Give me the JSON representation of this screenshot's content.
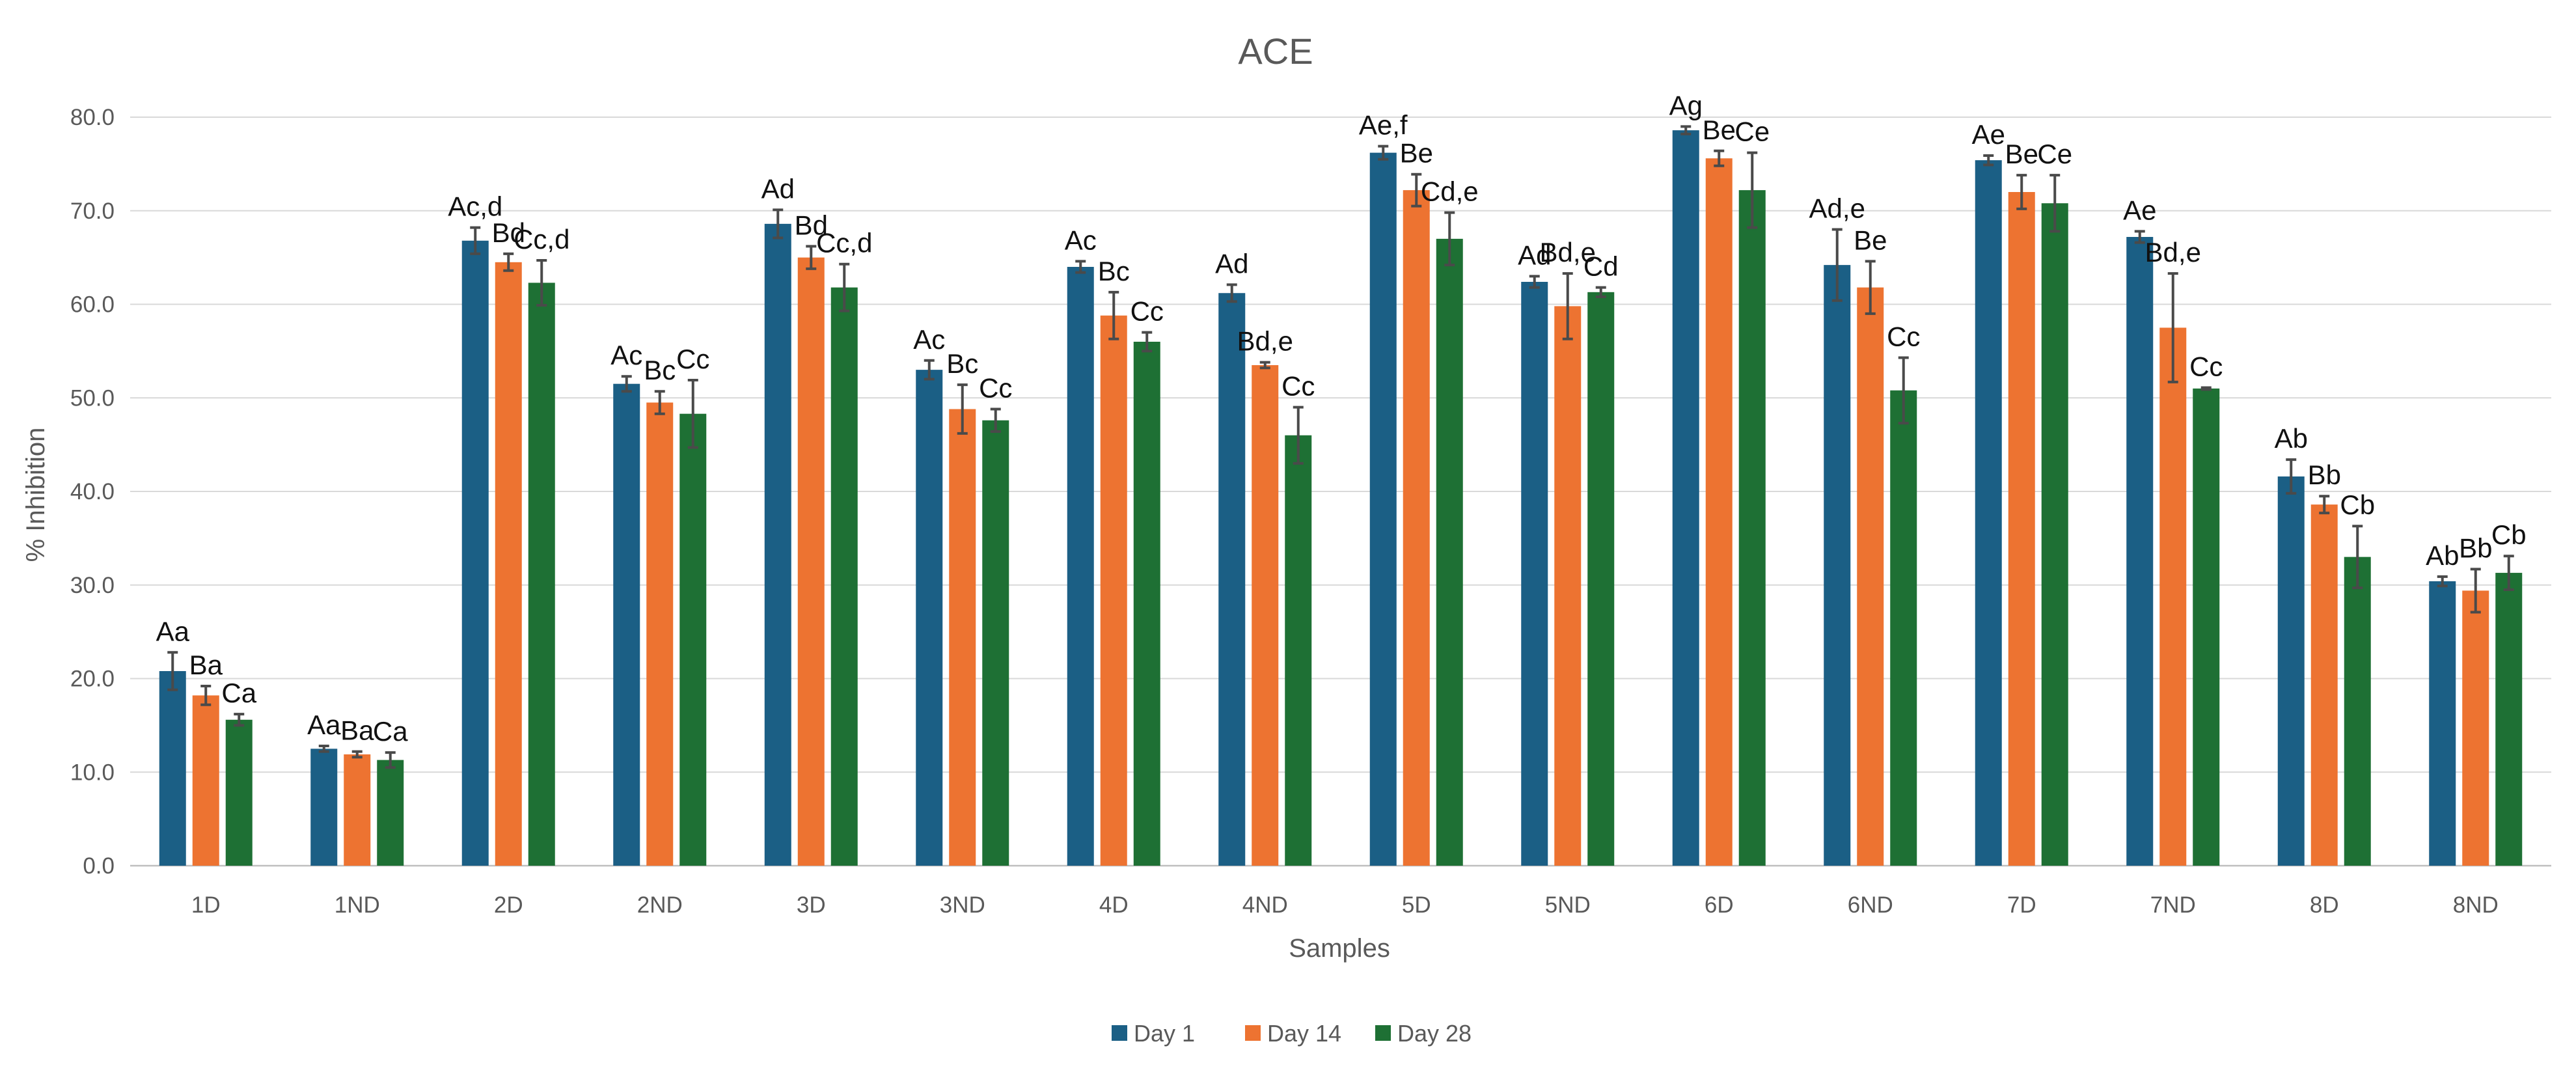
{
  "chart_data": {
    "type": "bar",
    "title": "ACE",
    "xlabel": "Samples",
    "ylabel": "% Inhibition",
    "ylim": [
      0,
      80
    ],
    "ytick_step": 10,
    "ytick_labels": [
      "0.0",
      "10.0",
      "20.0",
      "30.0",
      "40.0",
      "50.0",
      "60.0",
      "70.0",
      "80.0"
    ],
    "grid": true,
    "legend_position": "bottom",
    "categories": [
      "1D",
      "1ND",
      "2D",
      "2ND",
      "3D",
      "3ND",
      "4D",
      "4ND",
      "5D",
      "5ND",
      "6D",
      "6ND",
      "7D",
      "7ND",
      "8D",
      "8ND"
    ],
    "series": [
      {
        "name": "Day 1",
        "color": "#1b5f85",
        "values": [
          20.8,
          12.5,
          66.8,
          51.5,
          68.6,
          53.0,
          64.0,
          61.2,
          76.2,
          62.4,
          78.6,
          64.2,
          75.4,
          67.2,
          41.6,
          30.4
        ],
        "errors": [
          2.0,
          0.3,
          1.4,
          0.8,
          1.5,
          1.0,
          0.6,
          0.9,
          0.7,
          0.6,
          0.4,
          3.8,
          0.5,
          0.6,
          1.8,
          0.5
        ],
        "labels": [
          "Aa",
          "Aa",
          "Ac,d",
          "Ac",
          "Ad",
          "Ac",
          "Ac",
          "Ad",
          "Ae,f",
          "Ad",
          "Ag",
          "Ad,e",
          "Ae",
          "Ae",
          "Ab",
          "Ab"
        ]
      },
      {
        "name": "Day 14",
        "color": "#ed7331",
        "values": [
          18.2,
          11.9,
          64.5,
          49.5,
          65.0,
          48.8,
          58.8,
          53.5,
          72.2,
          59.8,
          75.6,
          61.8,
          72.0,
          57.5,
          38.6,
          29.4
        ],
        "errors": [
          1.0,
          0.3,
          0.9,
          1.2,
          1.2,
          2.6,
          2.5,
          0.3,
          1.7,
          3.5,
          0.8,
          2.8,
          1.8,
          5.8,
          0.9,
          2.3
        ],
        "labels": [
          "Ba",
          "Ba",
          "Bd",
          "Bc",
          "Bd",
          "Bc",
          "Bc",
          "Bd,e",
          "Be",
          "Bd,e",
          "Be",
          "Be",
          "Be",
          "Bd,e",
          "Bb",
          "Bb"
        ]
      },
      {
        "name": "Day 28",
        "color": "#1e7034",
        "values": [
          15.6,
          11.3,
          62.3,
          48.3,
          61.8,
          47.6,
          56.0,
          46.0,
          67.0,
          61.3,
          72.2,
          50.8,
          70.8,
          51.0,
          33.0,
          31.3
        ],
        "errors": [
          0.6,
          0.8,
          2.4,
          3.6,
          2.5,
          1.2,
          1.0,
          3.0,
          2.8,
          0.5,
          4.0,
          3.5,
          3.0,
          0.1,
          3.3,
          1.8
        ],
        "labels": [
          "Ca",
          "Ca",
          "Cc,d",
          "Cc",
          "Cc,d",
          "Cc",
          "Cc",
          "Cc",
          "Cd,e",
          "Cd",
          "Ce",
          "Cc",
          "Ce",
          "Cc",
          "Cb",
          "Cb"
        ]
      }
    ]
  }
}
